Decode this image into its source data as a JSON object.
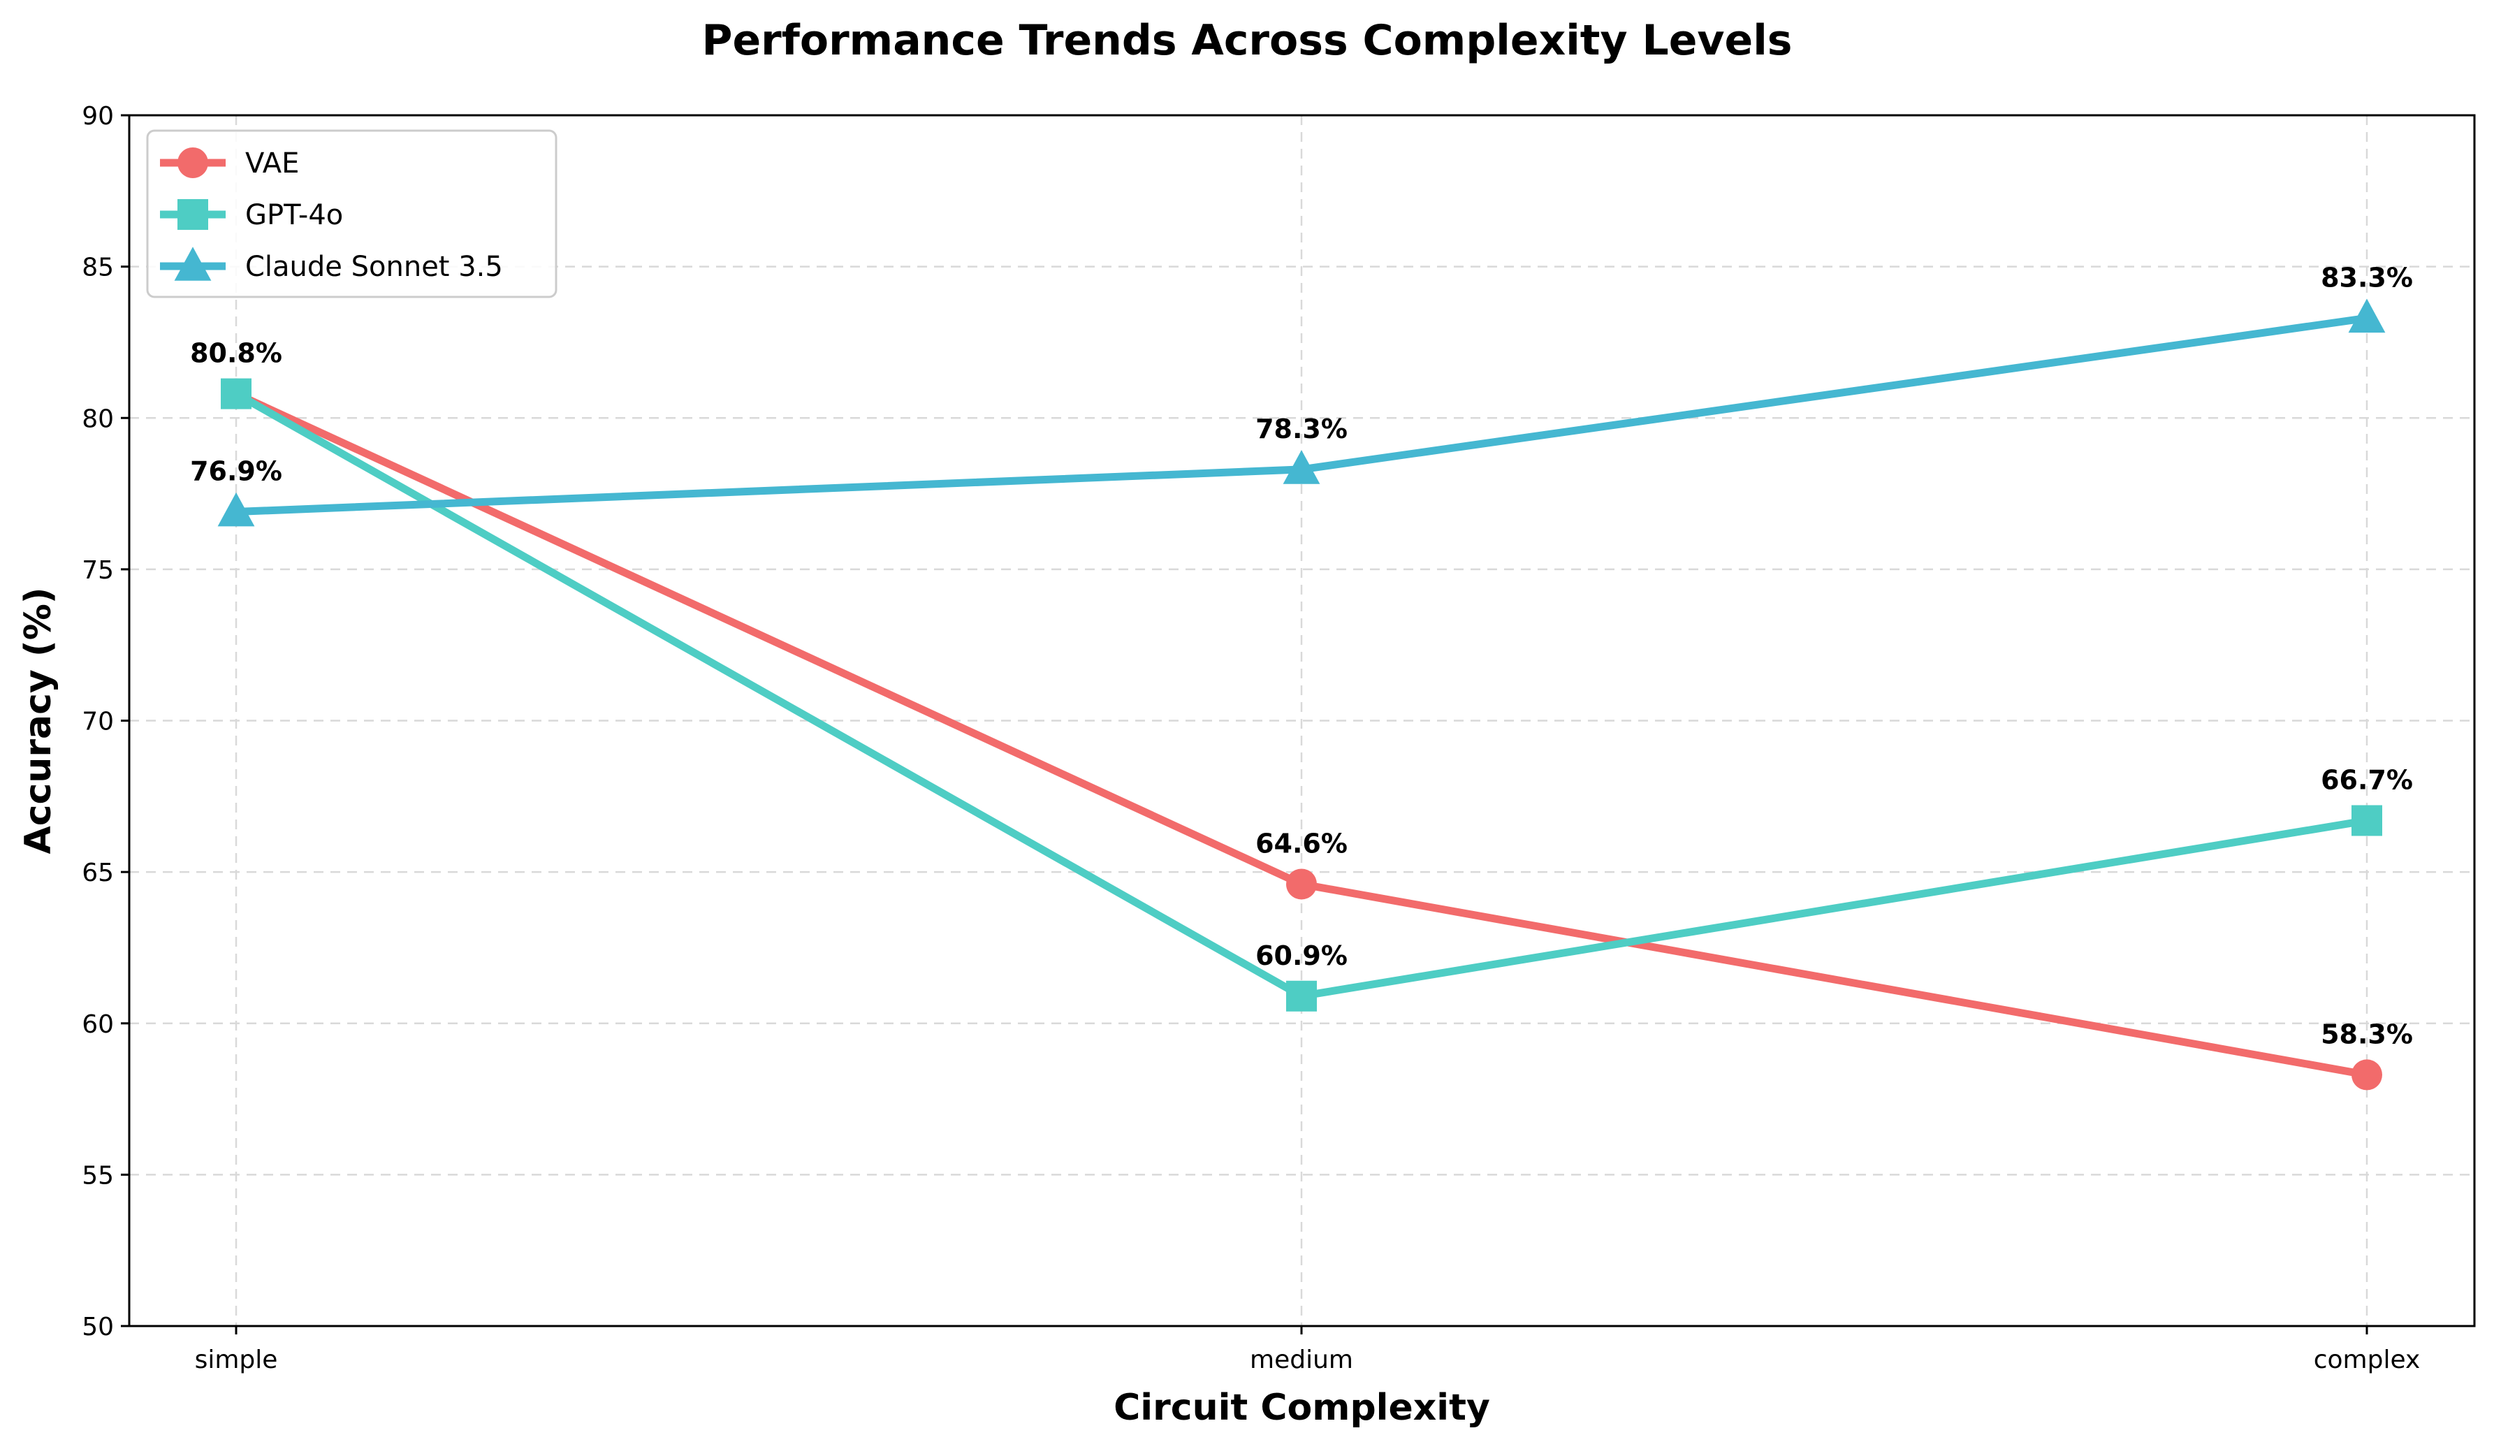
{
  "chart_data": {
    "type": "line",
    "title": "Performance Trends Across Complexity Levels",
    "xlabel": "Circuit Complexity",
    "ylabel": "Accuracy (%)",
    "categories": [
      "simple",
      "medium",
      "complex"
    ],
    "ylim": [
      50,
      90
    ],
    "yticks": [
      50,
      55,
      60,
      65,
      70,
      75,
      80,
      85,
      90
    ],
    "grid": true,
    "legend_position": "top-left",
    "series": [
      {
        "name": "VAE",
        "values": [
          80.8,
          64.6,
          58.3
        ],
        "labels": [
          "",
          "64.6%",
          "58.3%"
        ],
        "color": "#f26b6b",
        "marker": "circle"
      },
      {
        "name": "GPT-4o",
        "values": [
          80.8,
          60.9,
          66.7
        ],
        "labels": [
          "80.8%",
          "60.9%",
          "66.7%"
        ],
        "color": "#4ecdc4",
        "marker": "square"
      },
      {
        "name": "Claude Sonnet 3.5",
        "values": [
          76.9,
          78.3,
          83.3
        ],
        "labels": [
          "76.9%",
          "78.3%",
          "83.3%"
        ],
        "color": "#45b7d1",
        "marker": "triangle"
      }
    ]
  }
}
